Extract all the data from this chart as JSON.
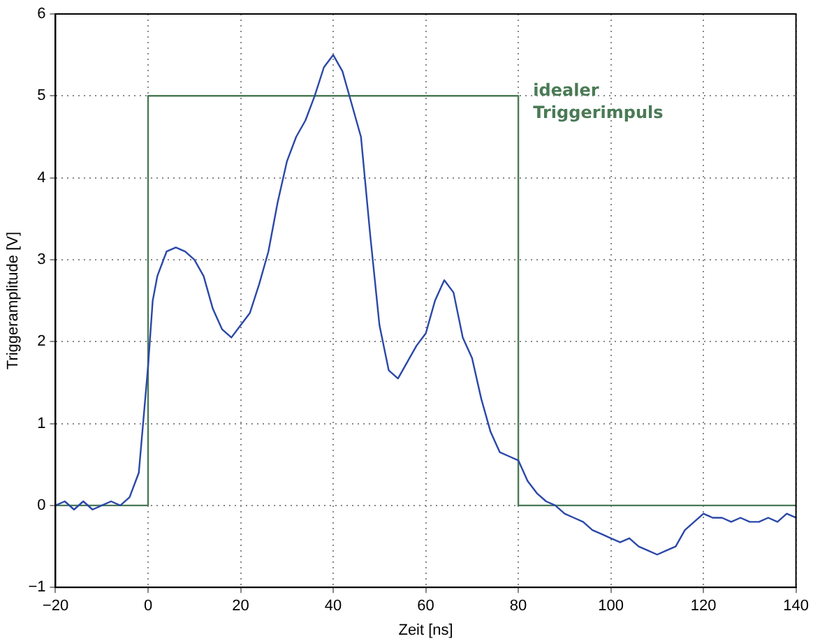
{
  "chart_data": {
    "type": "line",
    "xlabel": "Zeit [ns]",
    "ylabel": "Triggeramplitude [V]",
    "xlim": [
      -20,
      140
    ],
    "xticks": [
      -20,
      0,
      20,
      40,
      60,
      80,
      100,
      120,
      140
    ],
    "ylim": [
      -1,
      6
    ],
    "yticks": [
      -1,
      0,
      1,
      2,
      3,
      4,
      5,
      6
    ],
    "grid": true,
    "legend": false,
    "marker": "none",
    "line_style": "solid",
    "annotations": [
      "idealer\nTriggerimpuls"
    ],
    "series": [
      {
        "color": "#2a48a8",
        "x": [
          -20,
          -18,
          -16,
          -14,
          -12,
          -10,
          -8,
          -6,
          -4,
          -2,
          0,
          1,
          2,
          4,
          6,
          8,
          10,
          12,
          14,
          16,
          18,
          20,
          22,
          24,
          26,
          28,
          30,
          32,
          34,
          36,
          38,
          40,
          42,
          44,
          46,
          48,
          50,
          52,
          54,
          56,
          58,
          60,
          62,
          64,
          66,
          68,
          70,
          72,
          74,
          76,
          78,
          80,
          82,
          84,
          86,
          88,
          90,
          92,
          94,
          96,
          98,
          100,
          102,
          104,
          106,
          108,
          110,
          112,
          114,
          116,
          118,
          120,
          122,
          124,
          126,
          128,
          130,
          132,
          134,
          136,
          138,
          140
        ],
        "values": [
          0,
          0.05,
          -0.05,
          0.05,
          -0.05,
          0,
          0.05,
          0,
          0.1,
          0.4,
          1.7,
          2.5,
          2.8,
          3.1,
          3.15,
          3.1,
          3.0,
          2.8,
          2.4,
          2.15,
          2.05,
          2.2,
          2.35,
          2.7,
          3.1,
          3.7,
          4.2,
          4.5,
          4.7,
          5.0,
          5.35,
          5.5,
          5.3,
          4.9,
          4.5,
          3.3,
          2.2,
          1.65,
          1.55,
          1.75,
          1.95,
          2.1,
          2.5,
          2.75,
          2.6,
          2.05,
          1.8,
          1.3,
          0.9,
          0.65,
          0.6,
          0.55,
          0.3,
          0.15,
          0.05,
          0,
          -0.1,
          -0.15,
          -0.2,
          -0.3,
          -0.35,
          -0.4,
          -0.45,
          -0.4,
          -0.5,
          -0.55,
          -0.6,
          -0.55,
          -0.5,
          -0.3,
          -0.2,
          -0.1,
          -0.15,
          -0.15,
          -0.2,
          -0.15,
          -0.2,
          -0.2,
          -0.15,
          -0.2,
          -0.1,
          -0.15
        ]
      },
      {
        "color": "#4a7a55",
        "x": [
          -20,
          0,
          0,
          80,
          80,
          140
        ],
        "values": [
          0,
          0,
          5,
          5,
          0,
          0
        ]
      }
    ]
  }
}
